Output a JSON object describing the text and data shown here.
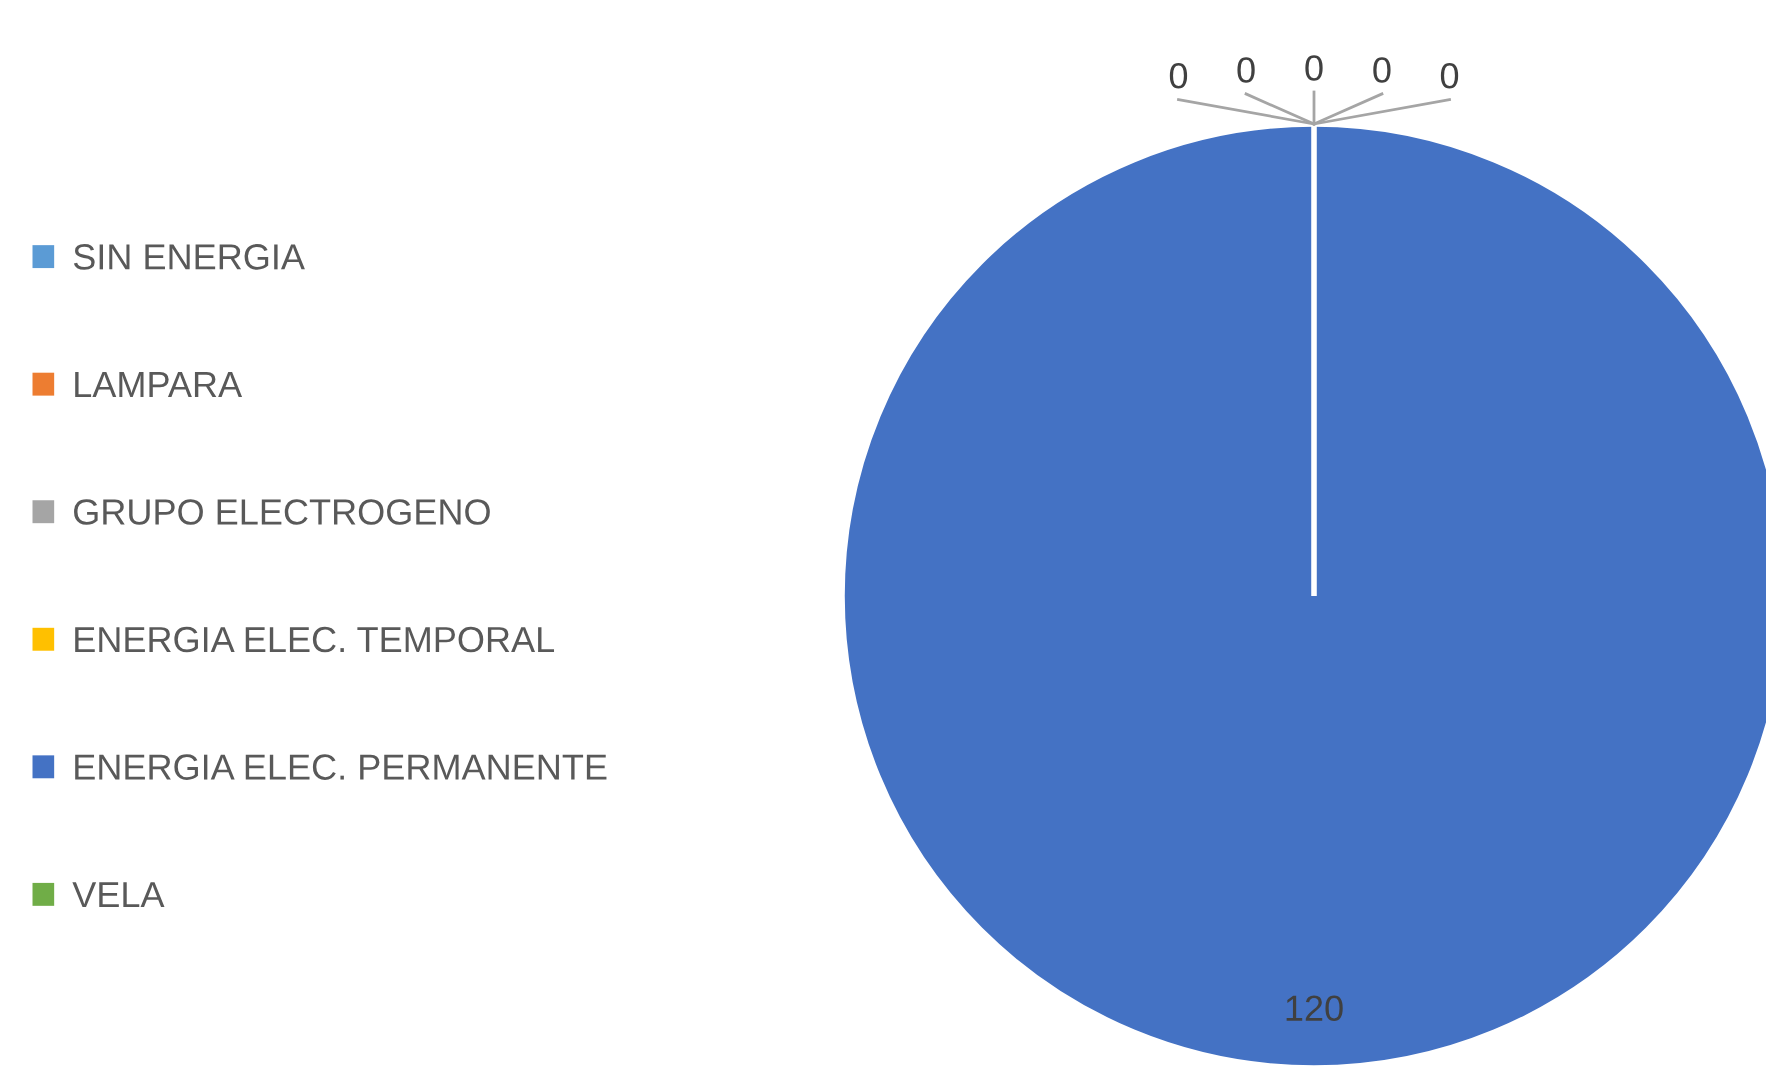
{
  "chart_data": {
    "type": "pie",
    "categories": [
      "SIN ENERGIA",
      "LAMPARA",
      "GRUPO ELECTROGENO",
      "ENERGIA ELEC. TEMPORAL",
      "ENERGIA ELEC. PERMANENTE",
      "VELA"
    ],
    "values": [
      0,
      0,
      0,
      0,
      120,
      0
    ],
    "colors": [
      "#5b9bd5",
      "#ed7d31",
      "#a5a5a5",
      "#ffc000",
      "#4472c4",
      "#70ad47"
    ],
    "value_labels": [
      "0",
      "0",
      "0",
      "0",
      "120",
      "0"
    ],
    "legend": "left"
  }
}
